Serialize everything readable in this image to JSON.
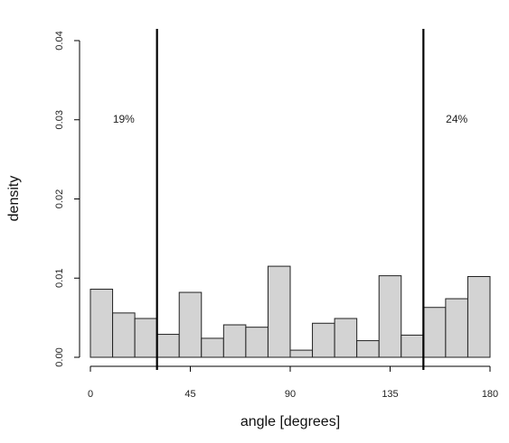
{
  "chart_data": {
    "type": "bar",
    "subtype": "histogram",
    "title": "",
    "xlabel": "angle [degrees]",
    "ylabel": "density",
    "xlim": [
      0,
      180
    ],
    "ylim": [
      0,
      0.04
    ],
    "xticks": [
      0,
      45,
      90,
      135,
      180
    ],
    "xtick_labels": [
      "0",
      "45",
      "90",
      "135",
      "180"
    ],
    "yticks": [
      0.0,
      0.01,
      0.02,
      0.03,
      0.04
    ],
    "ytick_labels": [
      "0.00",
      "0.01",
      "0.02",
      "0.03",
      "0.04"
    ],
    "bin_edges": [
      0,
      10,
      20,
      30,
      40,
      50,
      60,
      70,
      80,
      90,
      100,
      110,
      120,
      130,
      140,
      150,
      160,
      170,
      180
    ],
    "values": [
      0.0086,
      0.0056,
      0.0049,
      0.0029,
      0.0082,
      0.0024,
      0.0041,
      0.0038,
      0.0115,
      0.0009,
      0.0043,
      0.0049,
      0.0021,
      0.0103,
      0.0028,
      0.0063,
      0.0074,
      0.0102
    ],
    "vertical_lines": [
      30,
      150
    ],
    "annotations": [
      {
        "text": "19%",
        "x": 15,
        "y": 0.03
      },
      {
        "text": "24%",
        "x": 165,
        "y": 0.03
      }
    ],
    "bar_color": "#d3d3d3",
    "bar_edge_color": "#222222",
    "line_color": "#000000",
    "grid": false,
    "legend": "none"
  }
}
